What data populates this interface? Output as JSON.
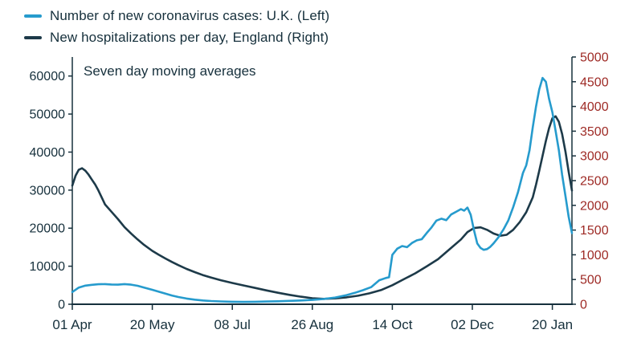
{
  "legend": {
    "items": [
      {
        "label": "Number of new coronavirus cases: U.K. (Left)",
        "color": "#269BCD"
      },
      {
        "label": "New hospitalizations per day, England (Right)",
        "color": "#1D3A49"
      }
    ]
  },
  "chart_data": {
    "type": "line",
    "title": "",
    "annotation": "Seven day moving averages",
    "legend_position": "top-left",
    "grid": false,
    "axis_color": "#16303C",
    "x_axis": {
      "unit": "days since 01 Apr",
      "domain": [
        0,
        306
      ],
      "ticks": [
        {
          "day": 0,
          "label": "01 Apr"
        },
        {
          "day": 49,
          "label": "20 May"
        },
        {
          "day": 98,
          "label": "08 Jul"
        },
        {
          "day": 147,
          "label": "26 Aug"
        },
        {
          "day": 196,
          "label": "14 Oct"
        },
        {
          "day": 245,
          "label": "02 Dec"
        },
        {
          "day": 294,
          "label": "20 Jan"
        }
      ]
    },
    "left_axis": {
      "ticks": [
        0,
        10000,
        20000,
        30000,
        40000,
        50000,
        60000
      ],
      "plot_max": 65000,
      "color": "#16303C"
    },
    "right_axis": {
      "ticks": [
        0,
        500,
        1000,
        1500,
        2000,
        2500,
        3000,
        3500,
        4000,
        4500,
        5000
      ],
      "plot_max": 5000,
      "color": "#9E2A25"
    },
    "series": [
      {
        "name": "New hospitalizations per day, England (Right)",
        "axis": "right",
        "color": "#1D3A49",
        "points": [
          [
            0,
            2400
          ],
          [
            2,
            2600
          ],
          [
            4,
            2720
          ],
          [
            6,
            2750
          ],
          [
            8,
            2700
          ],
          [
            10,
            2620
          ],
          [
            12,
            2520
          ],
          [
            14,
            2420
          ],
          [
            16,
            2300
          ],
          [
            18,
            2160
          ],
          [
            20,
            2020
          ],
          [
            24,
            1870
          ],
          [
            28,
            1720
          ],
          [
            32,
            1560
          ],
          [
            36,
            1430
          ],
          [
            40,
            1310
          ],
          [
            44,
            1200
          ],
          [
            49,
            1080
          ],
          [
            53,
            1000
          ],
          [
            57,
            925
          ],
          [
            61,
            855
          ],
          [
            65,
            790
          ],
          [
            70,
            715
          ],
          [
            75,
            650
          ],
          [
            80,
            590
          ],
          [
            85,
            540
          ],
          [
            91,
            485
          ],
          [
            98,
            430
          ],
          [
            105,
            380
          ],
          [
            112,
            330
          ],
          [
            119,
            280
          ],
          [
            126,
            232
          ],
          [
            133,
            190
          ],
          [
            140,
            152
          ],
          [
            147,
            122
          ],
          [
            154,
            108
          ],
          [
            161,
            118
          ],
          [
            168,
            140
          ],
          [
            175,
            172
          ],
          [
            182,
            220
          ],
          [
            189,
            285
          ],
          [
            196,
            385
          ],
          [
            203,
            505
          ],
          [
            210,
            625
          ],
          [
            217,
            765
          ],
          [
            224,
            910
          ],
          [
            231,
            1110
          ],
          [
            238,
            1310
          ],
          [
            242,
            1460
          ],
          [
            246,
            1540
          ],
          [
            250,
            1555
          ],
          [
            254,
            1505
          ],
          [
            258,
            1430
          ],
          [
            262,
            1385
          ],
          [
            266,
            1405
          ],
          [
            270,
            1505
          ],
          [
            274,
            1660
          ],
          [
            278,
            1860
          ],
          [
            282,
            2160
          ],
          [
            284,
            2420
          ],
          [
            286,
            2700
          ],
          [
            288,
            3000
          ],
          [
            290,
            3300
          ],
          [
            292,
            3560
          ],
          [
            294,
            3760
          ],
          [
            296,
            3800
          ],
          [
            298,
            3690
          ],
          [
            300,
            3440
          ],
          [
            302,
            3090
          ],
          [
            304,
            2680
          ],
          [
            306,
            2300
          ]
        ]
      },
      {
        "name": "Number of new coronavirus cases: U.K. (Left)",
        "axis": "left",
        "color": "#269BCD",
        "points": [
          [
            0,
            3200
          ],
          [
            4,
            4400
          ],
          [
            8,
            4900
          ],
          [
            12,
            5100
          ],
          [
            16,
            5250
          ],
          [
            20,
            5300
          ],
          [
            24,
            5200
          ],
          [
            28,
            5150
          ],
          [
            32,
            5300
          ],
          [
            36,
            5150
          ],
          [
            40,
            4850
          ],
          [
            44,
            4400
          ],
          [
            49,
            3800
          ],
          [
            53,
            3300
          ],
          [
            57,
            2800
          ],
          [
            61,
            2300
          ],
          [
            65,
            1900
          ],
          [
            70,
            1500
          ],
          [
            75,
            1200
          ],
          [
            80,
            1000
          ],
          [
            85,
            850
          ],
          [
            91,
            730
          ],
          [
            98,
            650
          ],
          [
            105,
            620
          ],
          [
            112,
            650
          ],
          [
            119,
            710
          ],
          [
            126,
            790
          ],
          [
            133,
            890
          ],
          [
            140,
            1000
          ],
          [
            147,
            1150
          ],
          [
            154,
            1400
          ],
          [
            161,
            1750
          ],
          [
            168,
            2400
          ],
          [
            173,
            3000
          ],
          [
            178,
            3700
          ],
          [
            183,
            4500
          ],
          [
            188,
            6300
          ],
          [
            192,
            6900
          ],
          [
            194,
            7100
          ],
          [
            196,
            13000
          ],
          [
            199,
            14600
          ],
          [
            202,
            15300
          ],
          [
            205,
            15000
          ],
          [
            208,
            16100
          ],
          [
            211,
            16800
          ],
          [
            214,
            17100
          ],
          [
            217,
            18700
          ],
          [
            220,
            20200
          ],
          [
            223,
            22000
          ],
          [
            226,
            22500
          ],
          [
            229,
            22100
          ],
          [
            232,
            23600
          ],
          [
            235,
            24300
          ],
          [
            238,
            25000
          ],
          [
            240,
            24600
          ],
          [
            242,
            25400
          ],
          [
            244,
            23500
          ],
          [
            246,
            19500
          ],
          [
            248,
            16000
          ],
          [
            250,
            14800
          ],
          [
            252,
            14300
          ],
          [
            254,
            14500
          ],
          [
            256,
            15100
          ],
          [
            258,
            16000
          ],
          [
            261,
            17600
          ],
          [
            264,
            19600
          ],
          [
            267,
            22000
          ],
          [
            270,
            25500
          ],
          [
            273,
            29500
          ],
          [
            276,
            34500
          ],
          [
            278,
            36500
          ],
          [
            280,
            40500
          ],
          [
            282,
            46500
          ],
          [
            284,
            52000
          ],
          [
            286,
            56500
          ],
          [
            288,
            59500
          ],
          [
            290,
            58500
          ],
          [
            292,
            54000
          ],
          [
            294,
            50500
          ],
          [
            296,
            45500
          ],
          [
            298,
            40500
          ],
          [
            300,
            34000
          ],
          [
            302,
            28500
          ],
          [
            304,
            23000
          ],
          [
            306,
            18700
          ]
        ]
      }
    ]
  }
}
